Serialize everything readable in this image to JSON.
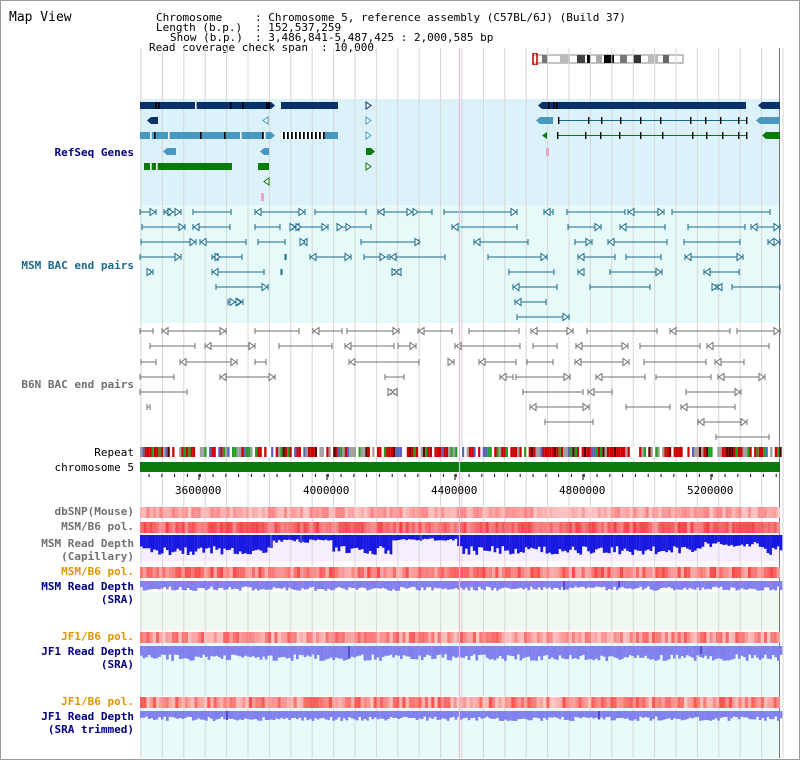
{
  "title": "Map View",
  "info": {
    "chromosome_label": "Chromosome",
    "chromosome_value": ": Chromosome 5, reference assembly (C57BL/6J) (Build 37)",
    "length_label": "Length (b.p.)",
    "length_value": ": 152,537,259",
    "show_label": "Show (b.p.)",
    "show_value": ": 3,486,841-5,487,425 : 2,000,585 bp",
    "coverage_label": "Read coverage check span",
    "coverage_value": ": 10,000"
  },
  "tracks": {
    "refseq": "RefSeq Genes",
    "msm_bac": "MSM BAC end pairs",
    "b6n_bac": "B6N BAC end pairs",
    "repeat": "Repeat",
    "chromosome": "chromosome 5",
    "dbsnp": "dbSNP(Mouse)",
    "msm_b6_pol": "MSM/B6 pol.",
    "msm_rd_cap": "MSM Read Depth\n(Capillary)",
    "msm_b6_pol2": "MSM/B6 pol.",
    "msm_rd_sra": "MSM Read Depth\n(SRA)",
    "jf1_b6_pol": "JF1/B6 pol.",
    "jf1_rd_sra": "JF1 Read Depth\n(SRA)",
    "jf1_b6_pol2": "JF1/B6 pol.",
    "jf1_rd_sra_trim": "JF1 Read Depth\n(SRA trimmed)"
  },
  "axis_ticks": [
    "3600000",
    "4000000",
    "4400000",
    "4800000",
    "5200000"
  ],
  "colors": {
    "refseq_bg": "#dcf2fa",
    "msm_bg": "#e6fafa",
    "gene_dark": "#0a3068",
    "gene_mid": "#4a98c0",
    "gene_green": "#0a7a0a",
    "bac_msm": "#1a6a8a",
    "bac_b6n": "#707070",
    "label_navy": "#000080",
    "label_teal": "#1a6a8a",
    "label_gray": "#707070",
    "label_orange": "#e39500",
    "chrom_green": "#0a7a0a",
    "depth_blue": "#1818e0",
    "depth_light": "#8080ee"
  }
}
